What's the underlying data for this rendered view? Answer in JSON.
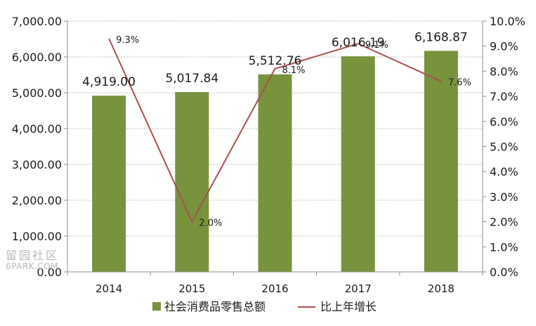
{
  "chart_data": {
    "type": "bar",
    "title": "",
    "categories": [
      "2014",
      "2015",
      "2016",
      "2017",
      "2018"
    ],
    "series": [
      {
        "name": "社会消费品零售总额",
        "type": "bar",
        "axis": "left",
        "color": "#77933c",
        "values": [
          4919.0,
          5017.84,
          5512.76,
          6016.19,
          6168.87
        ],
        "labels": [
          "4,919.00",
          "5,017.84",
          "5,512.76",
          "6,016.19",
          "6,168.87"
        ]
      },
      {
        "name": "比上年增长",
        "type": "line",
        "axis": "right",
        "color": "#a9504e",
        "values": [
          9.3,
          2.0,
          8.1,
          9.1,
          7.6
        ],
        "labels": [
          "9.3%",
          "2.0%",
          "8.1%",
          "9.1%",
          "7.6%"
        ]
      }
    ],
    "y_left": {
      "min": 0,
      "max": 7000,
      "ticks": [
        "0.00",
        "1,000.00",
        "2,000.00",
        "3,000.00",
        "4,000.00",
        "5,000.00",
        "6,000.00",
        "7,000.00"
      ]
    },
    "y_right": {
      "min": 0,
      "max": 10,
      "ticks": [
        "0.0%",
        "1.0%",
        "2.0%",
        "3.0%",
        "4.0%",
        "5.0%",
        "6.0%",
        "7.0%",
        "8.0%",
        "9.0%",
        "10.0%"
      ]
    },
    "grid": true,
    "legend_position": "bottom"
  },
  "watermark": {
    "line1": "留园社区",
    "line2": "6PARK.COM"
  }
}
